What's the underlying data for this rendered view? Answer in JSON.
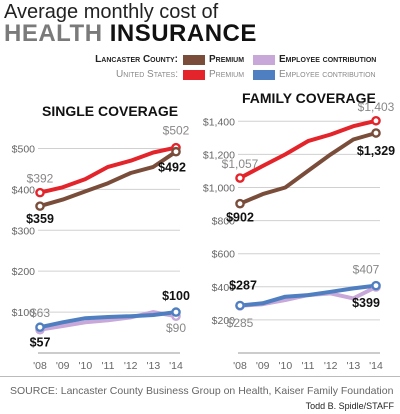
{
  "header": {
    "title_line1": "Average monthly cost of",
    "title_word1": "HEALTH",
    "title_word2": "INSURANCE"
  },
  "legend": {
    "lancaster_label": "Lancaster County:",
    "us_label": "United States:",
    "premium": "Premium",
    "employee": "Employee contribution"
  },
  "colors": {
    "lancaster_premium": "#7a4d3b",
    "lancaster_employee": "#c7a8d8",
    "us_premium": "#e3242b",
    "us_employee": "#4f7fc0"
  },
  "chart_data": [
    {
      "type": "line",
      "title": "SINGLE COVERAGE",
      "x": [
        "'08",
        "'09",
        "'10",
        "'11",
        "'12",
        "'13",
        "'14"
      ],
      "ylim": [
        0,
        550
      ],
      "yticks": [
        "$100",
        "$200",
        "$300",
        "$400",
        "$500"
      ],
      "series": [
        {
          "name": "Lancaster County: Premium",
          "values": [
            359,
            375,
            395,
            415,
            440,
            455,
            492
          ]
        },
        {
          "name": "United States: Premium",
          "values": [
            392,
            405,
            425,
            455,
            470,
            490,
            502
          ]
        },
        {
          "name": "Lancaster County: Employee contribution",
          "values": [
            57,
            66,
            75,
            80,
            87,
            100,
            90
          ]
        },
        {
          "name": "United States: Employee contribution",
          "values": [
            63,
            75,
            85,
            88,
            90,
            93,
            100
          ]
        }
      ],
      "annotations": {
        "us_premium_start": "$392",
        "us_premium_end": "$502",
        "lanc_premium_start": "$359",
        "lanc_premium_end": "$492",
        "us_employee_start": "$63",
        "lanc_employee_start": "$57",
        "us_employee_end": "$100",
        "lanc_employee_end": "$90"
      }
    },
    {
      "type": "line",
      "title": "FAMILY COVERAGE",
      "x": [
        "'08",
        "'09",
        "'10",
        "'11",
        "'12",
        "'13",
        "'14"
      ],
      "ylim": [
        0,
        1400
      ],
      "yticks": [
        "$200",
        "$400",
        "$600",
        "$800",
        "$1,000",
        "$1,200",
        "$1,400"
      ],
      "series": [
        {
          "name": "Lancaster County: Premium",
          "values": [
            902,
            960,
            1000,
            1100,
            1200,
            1290,
            1329
          ]
        },
        {
          "name": "United States: Premium",
          "values": [
            1057,
            1130,
            1200,
            1280,
            1320,
            1370,
            1403
          ]
        },
        {
          "name": "Lancaster County: Employee contribution",
          "values": [
            285,
            295,
            320,
            350,
            360,
            330,
            399
          ]
        },
        {
          "name": "United States: Employee contribution",
          "values": [
            287,
            300,
            340,
            350,
            370,
            390,
            407
          ]
        }
      ],
      "annotations": {
        "us_premium_start": "$1,057",
        "us_premium_end": "$1,403",
        "lanc_premium_start": "$902",
        "lanc_premium_end": "$1,329",
        "us_employee_start": "$287",
        "lanc_employee_start": "$285",
        "us_employee_end": "$407",
        "lanc_employee_end": "$399"
      }
    }
  ],
  "footer": {
    "source": "SOURCE: Lancaster County Business Group on Health, Kaiser Family Foundation",
    "credit": "Todd B. Spidle/STAFF"
  }
}
